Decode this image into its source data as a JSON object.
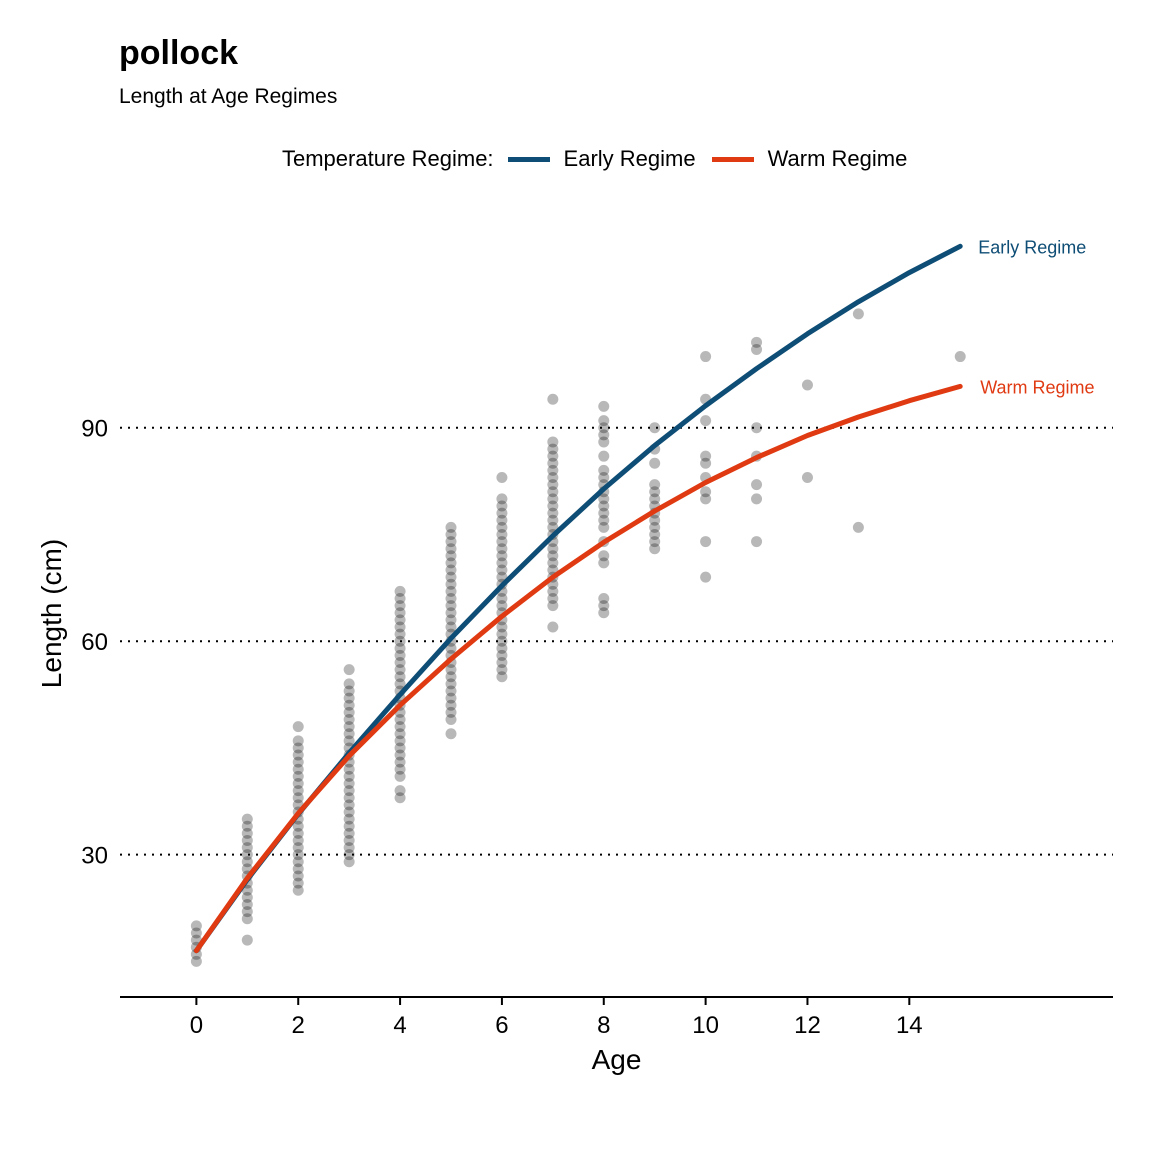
{
  "title": "pollock",
  "subtitle": "Length at Age Regimes",
  "legend": {
    "title": "Temperature Regime:",
    "items": [
      {
        "label": "Early Regime",
        "color": "#0E4D75"
      },
      {
        "label": "Warm Regime",
        "color": "#E03A12"
      }
    ]
  },
  "chart_data": {
    "type": "line",
    "xlabel": "Age",
    "ylabel": "Length (cm)",
    "xlim": [
      -1.5,
      18
    ],
    "ylim": [
      10,
      122
    ],
    "x_ticks": [
      0,
      2,
      4,
      6,
      8,
      10,
      12,
      14
    ],
    "y_ticks": [
      30,
      60,
      90
    ],
    "grid": "horizontal-dotted",
    "legend_position": "top",
    "series": [
      {
        "name": "Early Regime",
        "color": "#0E4D75",
        "end_label": "Early Regime",
        "x": [
          0,
          1,
          2,
          3,
          4,
          5,
          6,
          7,
          8,
          9,
          10,
          11,
          12,
          13,
          14,
          15
        ],
        "y": [
          16.5,
          26.5,
          35.7,
          44.3,
          52.5,
          60.4,
          67.8,
          74.8,
          81.4,
          87.5,
          93.1,
          98.3,
          103.2,
          107.7,
          111.8,
          115.5
        ]
      },
      {
        "name": "Warm Regime",
        "color": "#E03A12",
        "end_label": "Warm Regime",
        "x": [
          0,
          1,
          2,
          3,
          4,
          5,
          6,
          7,
          8,
          9,
          10,
          11,
          12,
          13,
          14,
          15
        ],
        "y": [
          16.5,
          26.7,
          35.8,
          43.9,
          51.0,
          57.5,
          63.5,
          69.0,
          73.9,
          78.3,
          82.3,
          85.8,
          88.9,
          91.5,
          93.8,
          95.8
        ]
      }
    ],
    "scatter": {
      "color": "#000000",
      "opacity": 0.28,
      "points": [
        [
          0,
          15
        ],
        [
          0,
          16
        ],
        [
          0,
          17
        ],
        [
          0,
          18
        ],
        [
          0,
          19
        ],
        [
          0,
          20
        ],
        [
          1,
          18
        ],
        [
          1,
          21
        ],
        [
          1,
          22
        ],
        [
          1,
          23
        ],
        [
          1,
          24
        ],
        [
          1,
          25
        ],
        [
          1,
          26
        ],
        [
          1,
          27
        ],
        [
          1,
          28
        ],
        [
          1,
          29
        ],
        [
          1,
          30
        ],
        [
          1,
          31
        ],
        [
          1,
          32
        ],
        [
          1,
          33
        ],
        [
          1,
          34
        ],
        [
          1,
          35
        ],
        [
          2,
          25
        ],
        [
          2,
          26
        ],
        [
          2,
          27
        ],
        [
          2,
          28
        ],
        [
          2,
          29
        ],
        [
          2,
          30
        ],
        [
          2,
          31
        ],
        [
          2,
          32
        ],
        [
          2,
          33
        ],
        [
          2,
          34
        ],
        [
          2,
          35
        ],
        [
          2,
          36
        ],
        [
          2,
          37
        ],
        [
          2,
          38
        ],
        [
          2,
          39
        ],
        [
          2,
          40
        ],
        [
          2,
          41
        ],
        [
          2,
          42
        ],
        [
          2,
          43
        ],
        [
          2,
          44
        ],
        [
          2,
          45
        ],
        [
          2,
          46
        ],
        [
          2,
          48
        ],
        [
          3,
          29
        ],
        [
          3,
          30
        ],
        [
          3,
          31
        ],
        [
          3,
          32
        ],
        [
          3,
          33
        ],
        [
          3,
          34
        ],
        [
          3,
          35
        ],
        [
          3,
          36
        ],
        [
          3,
          37
        ],
        [
          3,
          38
        ],
        [
          3,
          39
        ],
        [
          3,
          40
        ],
        [
          3,
          41
        ],
        [
          3,
          42
        ],
        [
          3,
          43
        ],
        [
          3,
          44
        ],
        [
          3,
          45
        ],
        [
          3,
          46
        ],
        [
          3,
          47
        ],
        [
          3,
          48
        ],
        [
          3,
          49
        ],
        [
          3,
          50
        ],
        [
          3,
          51
        ],
        [
          3,
          52
        ],
        [
          3,
          53
        ],
        [
          3,
          54
        ],
        [
          3,
          56
        ],
        [
          4,
          38
        ],
        [
          4,
          39
        ],
        [
          4,
          41
        ],
        [
          4,
          42
        ],
        [
          4,
          43
        ],
        [
          4,
          44
        ],
        [
          4,
          45
        ],
        [
          4,
          46
        ],
        [
          4,
          47
        ],
        [
          4,
          48
        ],
        [
          4,
          49
        ],
        [
          4,
          50
        ],
        [
          4,
          51
        ],
        [
          4,
          52
        ],
        [
          4,
          53
        ],
        [
          4,
          54
        ],
        [
          4,
          55
        ],
        [
          4,
          56
        ],
        [
          4,
          57
        ],
        [
          4,
          58
        ],
        [
          4,
          59
        ],
        [
          4,
          60
        ],
        [
          4,
          61
        ],
        [
          4,
          62
        ],
        [
          4,
          63
        ],
        [
          4,
          64
        ],
        [
          4,
          65
        ],
        [
          4,
          66
        ],
        [
          4,
          67
        ],
        [
          5,
          47
        ],
        [
          5,
          49
        ],
        [
          5,
          50
        ],
        [
          5,
          51
        ],
        [
          5,
          52
        ],
        [
          5,
          53
        ],
        [
          5,
          54
        ],
        [
          5,
          55
        ],
        [
          5,
          56
        ],
        [
          5,
          57
        ],
        [
          5,
          58
        ],
        [
          5,
          59
        ],
        [
          5,
          60
        ],
        [
          5,
          61
        ],
        [
          5,
          62
        ],
        [
          5,
          63
        ],
        [
          5,
          64
        ],
        [
          5,
          65
        ],
        [
          5,
          66
        ],
        [
          5,
          67
        ],
        [
          5,
          68
        ],
        [
          5,
          69
        ],
        [
          5,
          70
        ],
        [
          5,
          71
        ],
        [
          5,
          72
        ],
        [
          5,
          73
        ],
        [
          5,
          74
        ],
        [
          5,
          75
        ],
        [
          5,
          76
        ],
        [
          6,
          55
        ],
        [
          6,
          56
        ],
        [
          6,
          57
        ],
        [
          6,
          58
        ],
        [
          6,
          59
        ],
        [
          6,
          60
        ],
        [
          6,
          61
        ],
        [
          6,
          62
        ],
        [
          6,
          63
        ],
        [
          6,
          64
        ],
        [
          6,
          65
        ],
        [
          6,
          66
        ],
        [
          6,
          67
        ],
        [
          6,
          68
        ],
        [
          6,
          69
        ],
        [
          6,
          70
        ],
        [
          6,
          71
        ],
        [
          6,
          72
        ],
        [
          6,
          73
        ],
        [
          6,
          74
        ],
        [
          6,
          75
        ],
        [
          6,
          76
        ],
        [
          6,
          77
        ],
        [
          6,
          78
        ],
        [
          6,
          79
        ],
        [
          6,
          80
        ],
        [
          6,
          83
        ],
        [
          7,
          62
        ],
        [
          7,
          65
        ],
        [
          7,
          66
        ],
        [
          7,
          67
        ],
        [
          7,
          68
        ],
        [
          7,
          69
        ],
        [
          7,
          70
        ],
        [
          7,
          71
        ],
        [
          7,
          72
        ],
        [
          7,
          73
        ],
        [
          7,
          74
        ],
        [
          7,
          75
        ],
        [
          7,
          76
        ],
        [
          7,
          77
        ],
        [
          7,
          78
        ],
        [
          7,
          79
        ],
        [
          7,
          80
        ],
        [
          7,
          81
        ],
        [
          7,
          82
        ],
        [
          7,
          83
        ],
        [
          7,
          84
        ],
        [
          7,
          85
        ],
        [
          7,
          86
        ],
        [
          7,
          87
        ],
        [
          7,
          88
        ],
        [
          7,
          94
        ],
        [
          8,
          64
        ],
        [
          8,
          65
        ],
        [
          8,
          66
        ],
        [
          8,
          71
        ],
        [
          8,
          72
        ],
        [
          8,
          74
        ],
        [
          8,
          76
        ],
        [
          8,
          77
        ],
        [
          8,
          78
        ],
        [
          8,
          79
        ],
        [
          8,
          80
        ],
        [
          8,
          81
        ],
        [
          8,
          82
        ],
        [
          8,
          83
        ],
        [
          8,
          84
        ],
        [
          8,
          86
        ],
        [
          8,
          88
        ],
        [
          8,
          89
        ],
        [
          8,
          90
        ],
        [
          8,
          91
        ],
        [
          8,
          93
        ],
        [
          9,
          73
        ],
        [
          9,
          74
        ],
        [
          9,
          75
        ],
        [
          9,
          76
        ],
        [
          9,
          77
        ],
        [
          9,
          78
        ],
        [
          9,
          79
        ],
        [
          9,
          80
        ],
        [
          9,
          81
        ],
        [
          9,
          82
        ],
        [
          9,
          85
        ],
        [
          9,
          87
        ],
        [
          9,
          90
        ],
        [
          10,
          69
        ],
        [
          10,
          74
        ],
        [
          10,
          80
        ],
        [
          10,
          81
        ],
        [
          10,
          83
        ],
        [
          10,
          85
        ],
        [
          10,
          86
        ],
        [
          10,
          91
        ],
        [
          10,
          94
        ],
        [
          10,
          100
        ],
        [
          11,
          74
        ],
        [
          11,
          80
        ],
        [
          11,
          82
        ],
        [
          11,
          86
        ],
        [
          11,
          90
        ],
        [
          11,
          101
        ],
        [
          11,
          102
        ],
        [
          12,
          83
        ],
        [
          12,
          96
        ],
        [
          13,
          76
        ],
        [
          13,
          106
        ],
        [
          15,
          100
        ]
      ]
    }
  }
}
